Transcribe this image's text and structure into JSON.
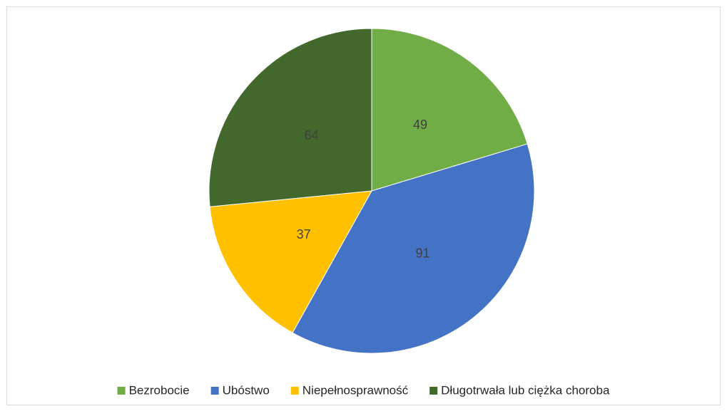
{
  "chart_data": {
    "type": "pie",
    "categories": [
      "Bezrobocie",
      "Ubóstwo",
      "Niepełnosprawność",
      "Długotrwała lub ciężka choroba"
    ],
    "values": [
      49,
      91,
      37,
      64
    ],
    "colors": [
      "#70ad47",
      "#4472c4",
      "#ffc000",
      "#43682b"
    ],
    "legend": "bottom"
  }
}
